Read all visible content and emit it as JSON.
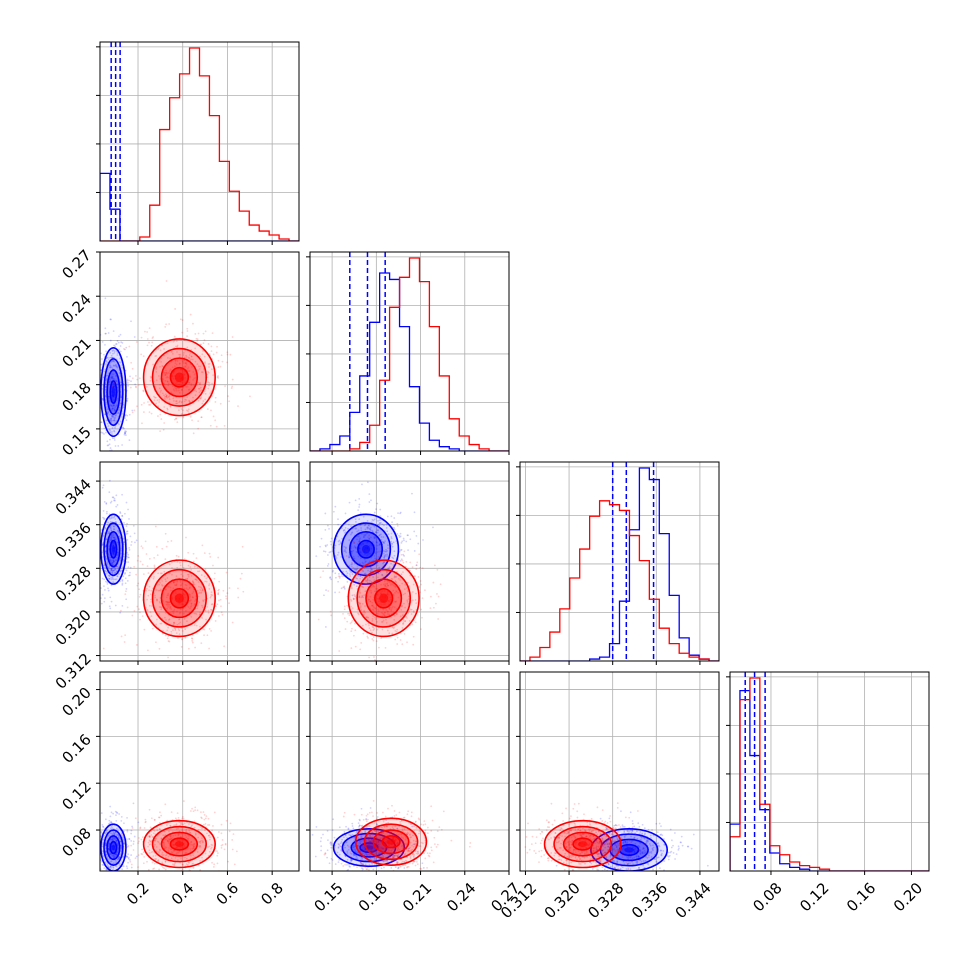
{
  "chart_data": {
    "type": "corner",
    "grid": true,
    "parameters": [
      {
        "range": [
          0.03,
          0.92
        ],
        "ticks": [
          0.2,
          0.4,
          0.6,
          0.8
        ],
        "tick_labels": [
          "0.2",
          "0.4",
          "0.6",
          "0.8"
        ]
      },
      {
        "range": [
          0.135,
          0.27
        ],
        "ticks": [
          0.15,
          0.18,
          0.21,
          0.24,
          0.27
        ],
        "tick_labels": [
          "0.15",
          "0.18",
          "0.21",
          "0.24",
          "0.27"
        ]
      },
      {
        "range": [
          0.311,
          0.3475
        ],
        "ticks": [
          0.312,
          0.32,
          0.328,
          0.336,
          0.344
        ],
        "tick_labels": [
          "0.312",
          "0.320",
          "0.328",
          "0.336",
          "0.344"
        ]
      },
      {
        "range": [
          0.045,
          0.215
        ],
        "ticks": [
          0.08,
          0.12,
          0.16,
          0.2
        ],
        "tick_labels": [
          "0.08",
          "0.12",
          "0.16",
          "0.20"
        ]
      }
    ],
    "series": [
      {
        "color": "#0000ff",
        "quantiles": [
          [
            0.08,
            0.1,
            0.12
          ],
          [
            0.162,
            0.174,
            0.186
          ],
          [
            0.328,
            0.3305,
            0.3355
          ],
          [
            0.058,
            0.066,
            0.075
          ]
        ],
        "hist": [
          [
            34,
            16,
            0,
            0,
            0,
            0,
            0,
            0,
            0,
            0,
            0,
            0,
            0,
            0,
            0,
            0,
            0,
            0,
            0,
            0
          ],
          [
            0,
            1,
            3,
            7,
            18,
            35,
            60,
            83,
            80,
            58,
            30,
            13,
            5,
            2,
            1,
            0,
            0,
            0,
            0,
            0
          ],
          [
            0,
            0,
            0,
            0,
            0,
            0,
            0,
            1,
            2,
            9,
            31,
            68,
            100,
            94,
            66,
            34,
            12,
            3,
            1,
            0
          ],
          [
            26,
            100,
            64,
            34,
            10,
            4,
            2,
            1,
            0,
            0,
            0,
            0,
            0,
            0,
            0,
            0,
            0,
            0,
            0,
            0
          ]
        ],
        "pairs": [
          {
            "x": 0,
            "y": 1,
            "center": [
              0.09,
              0.175
            ],
            "sigma": [
              0.028,
              0.015
            ]
          },
          {
            "x": 0,
            "y": 2,
            "center": [
              0.09,
              0.3315
            ],
            "sigma": [
              0.028,
              0.0032
            ]
          },
          {
            "x": 1,
            "y": 2,
            "center": [
              0.173,
              0.3315
            ],
            "sigma": [
              0.011,
              0.0032
            ]
          },
          {
            "x": 0,
            "y": 3,
            "center": [
              0.09,
              0.065
            ],
            "sigma": [
              0.028,
              0.01
            ]
          },
          {
            "x": 1,
            "y": 3,
            "center": [
              0.175,
              0.065
            ],
            "sigma": [
              0.012,
              0.008
            ]
          },
          {
            "x": 2,
            "y": 3,
            "center": [
              0.331,
              0.063
            ],
            "sigma": [
              0.0035,
              0.009
            ]
          }
        ]
      },
      {
        "color": "#ff0000",
        "hist": [
          [
            0,
            0,
            0,
            0,
            2,
            18,
            56,
            72,
            84,
            97,
            83,
            63,
            40,
            25,
            15,
            8,
            5,
            3,
            1,
            0
          ],
          [
            0,
            0,
            0,
            0,
            1,
            4,
            12,
            33,
            67,
            81,
            90,
            79,
            58,
            35,
            15,
            7,
            3,
            1,
            0,
            0
          ],
          [
            0,
            2,
            7,
            15,
            27,
            43,
            58,
            75,
            83,
            81,
            78,
            65,
            52,
            32,
            17,
            9,
            4,
            2,
            1,
            0
          ],
          [
            19,
            95,
            107,
            37,
            14,
            9,
            5,
            3,
            2,
            1,
            0,
            0,
            0,
            0,
            0,
            0,
            0,
            0,
            0,
            0
          ]
        ],
        "pairs": [
          {
            "x": 0,
            "y": 1,
            "center": [
              0.385,
              0.185
            ],
            "sigma": [
              0.08,
              0.013
            ]
          },
          {
            "x": 0,
            "y": 2,
            "center": [
              0.385,
              0.3225
            ],
            "sigma": [
              0.08,
              0.0035
            ]
          },
          {
            "x": 1,
            "y": 2,
            "center": [
              0.185,
              0.3225
            ],
            "sigma": [
              0.012,
              0.0035
            ]
          },
          {
            "x": 0,
            "y": 3,
            "center": [
              0.385,
              0.068
            ],
            "sigma": [
              0.08,
              0.01
            ]
          },
          {
            "x": 1,
            "y": 3,
            "center": [
              0.19,
              0.07
            ],
            "sigma": [
              0.012,
              0.01
            ]
          },
          {
            "x": 2,
            "y": 3,
            "center": [
              0.3225,
              0.068
            ],
            "sigma": [
              0.0035,
              0.01
            ]
          }
        ]
      }
    ]
  }
}
